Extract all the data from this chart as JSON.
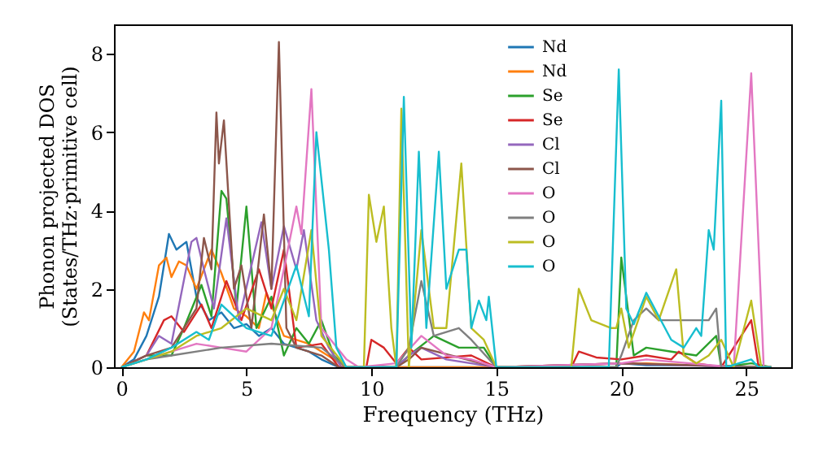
{
  "chart_data": {
    "type": "line",
    "xlabel": "Frequency (THz)",
    "ylabel": "Phonon projected DOS\n(States/THz·primitive cell)",
    "xlim": [
      -0.3,
      26.8
    ],
    "ylim": [
      0,
      8.75
    ],
    "xticks": [
      0,
      5,
      10,
      15,
      20,
      25
    ],
    "yticks": [
      0,
      2,
      4,
      6,
      8
    ],
    "grid": false,
    "legend": "top right",
    "marker": "none",
    "line_style": "solid",
    "series": [
      {
        "name": "Nd",
        "color": "#1f77b4",
        "x": [
          0,
          0.5,
          1,
          1.5,
          1.9,
          2.2,
          2.6,
          3,
          3.5,
          4,
          4.5,
          5,
          5.5,
          6,
          6.5,
          7,
          7.5,
          8,
          8.7,
          10,
          15,
          19.8,
          20,
          21,
          23,
          25,
          26
        ],
        "values": [
          0,
          0.2,
          0.8,
          1.8,
          3.4,
          3.0,
          3.2,
          1.8,
          1.2,
          1.4,
          1.0,
          1.1,
          0.8,
          1.0,
          0.6,
          0.5,
          0.4,
          0.2,
          0,
          0,
          0,
          0,
          0.1,
          0.05,
          0.05,
          0,
          0
        ]
      },
      {
        "name": "Nd",
        "color": "#ff7f0e",
        "x": [
          0,
          0.5,
          0.9,
          1.1,
          1.5,
          1.8,
          2.0,
          2.3,
          2.6,
          3.0,
          3.6,
          4.0,
          4.5,
          5.0,
          5.5,
          5.8,
          6.5,
          7.5,
          8.5,
          9,
          15,
          20,
          21,
          23,
          26
        ],
        "values": [
          0,
          0.4,
          1.4,
          1.2,
          2.6,
          2.8,
          2.3,
          2.7,
          2.6,
          2.0,
          3.0,
          2.4,
          1.5,
          1.3,
          1.0,
          1.9,
          0.8,
          0.6,
          0.2,
          0,
          0,
          0.1,
          0.1,
          0.05,
          0
        ]
      },
      {
        "name": "Se",
        "color": "#2ca02c",
        "x": [
          0,
          1,
          2,
          2.5,
          3.2,
          3.6,
          4.0,
          4.2,
          4.6,
          5.0,
          5.4,
          6.0,
          6.5,
          7,
          7.5,
          8,
          8.5,
          9,
          11,
          11.5,
          12.5,
          13.5,
          14.5,
          15,
          19.8,
          20,
          20.5,
          21,
          22,
          23,
          23.8,
          24,
          25.2,
          26
        ],
        "values": [
          0,
          0.3,
          0.3,
          1.0,
          2.1,
          1.3,
          4.5,
          4.3,
          1.5,
          4.1,
          1.0,
          1.8,
          0.3,
          1.0,
          0.6,
          1.2,
          0.3,
          0,
          0,
          0.3,
          0.8,
          0.5,
          0.5,
          0,
          0,
          2.8,
          0.3,
          0.5,
          0.4,
          0.3,
          0.8,
          0,
          0.1,
          0
        ]
      },
      {
        "name": "Se",
        "color": "#d62728",
        "x": [
          0,
          1,
          1.7,
          2,
          2.5,
          3.2,
          3.6,
          4.2,
          4.8,
          5.5,
          6,
          6.5,
          7,
          8,
          8.7,
          9.8,
          10,
          10.5,
          11,
          11.5,
          12,
          14,
          15,
          18,
          18.3,
          19,
          20,
          21,
          22,
          22.3,
          23,
          24,
          25.2,
          25.5,
          26
        ],
        "values": [
          0,
          0.3,
          1.2,
          1.3,
          0.9,
          1.6,
          1.0,
          2.2,
          1.2,
          2.5,
          1.5,
          3.0,
          0.5,
          0.6,
          0,
          0,
          0.7,
          0.5,
          0.1,
          0.5,
          0.2,
          0.3,
          0,
          0,
          0.4,
          0.25,
          0.2,
          0.3,
          0.2,
          0.4,
          0.1,
          0,
          1.2,
          0,
          0
        ]
      },
      {
        "name": "Cl",
        "color": "#9467bd",
        "x": [
          0,
          1,
          1.5,
          2,
          2.8,
          3,
          3.3,
          3.7,
          4.2,
          4.7,
          5.6,
          6,
          6.5,
          7,
          7.3,
          7.8,
          8.3,
          8.8,
          11,
          11.5,
          12,
          13,
          15,
          20,
          25,
          26
        ],
        "values": [
          0,
          0.3,
          0.8,
          0.6,
          3.2,
          3.3,
          2.5,
          1.5,
          3.8,
          1.2,
          3.7,
          2.0,
          3.6,
          2.5,
          3.5,
          1.2,
          0.5,
          0,
          0,
          0.3,
          0.5,
          0.2,
          0,
          0.1,
          0,
          0
        ]
      },
      {
        "name": "Cl",
        "color": "#8c564b",
        "x": [
          0,
          1,
          2,
          3,
          3.3,
          3.6,
          3.8,
          3.9,
          4.1,
          4.5,
          4.8,
          5.2,
          5.7,
          6.0,
          6.3,
          6.6,
          7,
          8,
          8.7,
          11,
          11.5,
          12,
          15,
          20,
          26
        ],
        "values": [
          0,
          0.3,
          0.5,
          1.5,
          3.3,
          2.5,
          6.5,
          5.2,
          6.3,
          2.0,
          2.6,
          1.0,
          3.9,
          2.0,
          8.3,
          1.0,
          0.5,
          0.3,
          0,
          0,
          0.2,
          0.5,
          0,
          0.1,
          0
        ]
      },
      {
        "name": "O",
        "color": "#e377c2",
        "x": [
          0,
          1,
          2,
          3,
          4,
          5,
          6,
          6.5,
          7.0,
          7.2,
          7.6,
          8,
          9,
          9.5,
          11,
          12,
          13,
          14,
          15,
          20,
          21,
          24.5,
          25.2,
          25.7,
          26
        ],
        "values": [
          0,
          0.2,
          0.4,
          0.6,
          0.5,
          0.4,
          1.0,
          2.5,
          4.1,
          3.4,
          7.1,
          1.0,
          0.2,
          0,
          0.1,
          0.8,
          0.3,
          0.2,
          0,
          0.1,
          0.2,
          0,
          7.5,
          0,
          0
        ]
      },
      {
        "name": "O",
        "color": "#7f7f7f",
        "x": [
          0,
          1,
          2,
          4,
          6,
          8,
          9,
          11,
          11.5,
          12,
          12.5,
          13.5,
          14,
          15,
          19.8,
          20,
          20.5,
          21,
          21.5,
          23.5,
          23.8,
          24,
          26
        ],
        "values": [
          0,
          0.2,
          0.3,
          0.5,
          0.6,
          0.5,
          0,
          0,
          0.5,
          2.2,
          0.8,
          1.0,
          0.7,
          0,
          0,
          0.3,
          1.2,
          1.5,
          1.2,
          1.2,
          1.5,
          0,
          0
        ]
      },
      {
        "name": "O",
        "color": "#bcbd22",
        "x": [
          0,
          1,
          2,
          3,
          4,
          5,
          6,
          6.5,
          7,
          7.6,
          8,
          9,
          9.7,
          9.9,
          10.2,
          10.5,
          10.8,
          11,
          11.2,
          11.5,
          12,
          12.5,
          13,
          13.6,
          14,
          14.5,
          15,
          18,
          18.3,
          18.8,
          19.6,
          19.8,
          20,
          20.3,
          21,
          21.5,
          22.2,
          22.5,
          23,
          23.5,
          24,
          24.5,
          25.2,
          25.6,
          26
        ],
        "values": [
          0,
          0.2,
          0.4,
          0.8,
          1.0,
          1.5,
          1.2,
          2.0,
          1.2,
          3.5,
          0.8,
          0,
          0,
          4.4,
          3.2,
          4.1,
          1.0,
          0,
          6.6,
          0,
          3.5,
          1.0,
          1.0,
          5.2,
          1.0,
          0.7,
          0,
          0,
          2.0,
          1.2,
          1.0,
          1.0,
          1.5,
          0.5,
          1.8,
          1.2,
          2.5,
          0.3,
          0.1,
          0.3,
          0.7,
          0,
          1.7,
          0,
          0
        ]
      },
      {
        "name": "O",
        "color": "#17becf",
        "x": [
          0,
          1,
          2,
          3,
          3.5,
          4,
          5,
          6,
          7,
          7.5,
          7.8,
          8.3,
          8.6,
          9,
          11,
          11.3,
          11.6,
          11.9,
          12.2,
          12.7,
          13,
          13.5,
          13.8,
          14,
          14.3,
          14.6,
          14.7,
          15,
          19.5,
          19.9,
          20.2,
          20.5,
          21,
          21.5,
          22,
          22.5,
          23,
          23.2,
          23.5,
          23.7,
          24.0,
          24.2,
          25.2,
          25.5,
          26
        ],
        "values": [
          0,
          0.2,
          0.5,
          0.9,
          0.7,
          1.6,
          1.0,
          0.8,
          2.6,
          1.3,
          6.0,
          3.0,
          0.5,
          0,
          0,
          6.9,
          0.5,
          5.5,
          1.0,
          5.5,
          2.0,
          3.0,
          3.0,
          1.0,
          1.7,
          1.2,
          1.8,
          0,
          0,
          7.6,
          1.5,
          1.1,
          1.9,
          1.3,
          0.7,
          0.5,
          1.0,
          0.8,
          3.5,
          3.0,
          6.8,
          0,
          0.2,
          0,
          0
        ]
      }
    ]
  }
}
